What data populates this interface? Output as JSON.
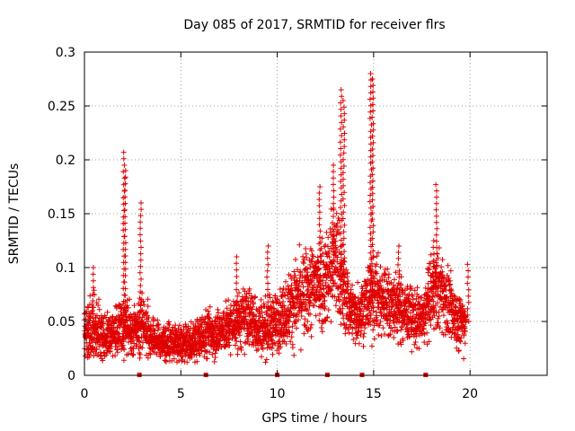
{
  "chart_data": {
    "type": "scatter",
    "title": "Day 085 of 2017, SRMTID for receiver flrs",
    "xlabel": "GPS time / hours",
    "ylabel": "SRMTID / TECUs",
    "xlim": [
      0,
      24
    ],
    "ylim": [
      0,
      0.3
    ],
    "x_ticks": [
      0,
      5,
      10,
      15,
      20
    ],
    "x_tick_labels": [
      "0",
      "5",
      "10",
      "15",
      "20"
    ],
    "y_ticks": [
      0,
      0.05,
      0.1,
      0.15,
      0.2,
      0.25,
      0.3
    ],
    "y_tick_labels": [
      "0",
      "0.05",
      "0.1",
      "0.15",
      "0.2",
      "0.25",
      "0.3"
    ],
    "grid": true,
    "marker": "+",
    "series_color": "#e00000",
    "data_gap_markers_x": [
      2.85,
      6.3,
      10.0,
      12.6,
      14.4,
      17.7
    ],
    "envelope": {
      "description_hours": [
        0.0,
        0.5,
        1.0,
        1.5,
        2.0,
        2.5,
        3.0,
        3.5,
        4.0,
        4.5,
        5.0,
        5.5,
        6.0,
        6.5,
        7.0,
        7.5,
        8.0,
        8.5,
        9.0,
        9.5,
        10.0,
        10.5,
        11.0,
        11.5,
        12.0,
        12.5,
        13.0,
        13.5,
        14.0,
        14.5,
        15.0,
        15.5,
        16.0,
        16.5,
        17.0,
        17.5,
        18.0,
        18.5,
        19.0,
        19.5,
        19.8
      ],
      "median": [
        0.04,
        0.045,
        0.035,
        0.04,
        0.045,
        0.04,
        0.05,
        0.035,
        0.03,
        0.03,
        0.028,
        0.03,
        0.035,
        0.04,
        0.04,
        0.045,
        0.05,
        0.055,
        0.045,
        0.045,
        0.05,
        0.06,
        0.07,
        0.075,
        0.085,
        0.09,
        0.11,
        0.075,
        0.055,
        0.065,
        0.075,
        0.07,
        0.065,
        0.06,
        0.055,
        0.05,
        0.075,
        0.08,
        0.06,
        0.05,
        0.05
      ],
      "spread": [
        0.018,
        0.02,
        0.015,
        0.015,
        0.02,
        0.015,
        0.02,
        0.012,
        0.012,
        0.012,
        0.012,
        0.012,
        0.014,
        0.016,
        0.015,
        0.016,
        0.018,
        0.02,
        0.018,
        0.018,
        0.018,
        0.022,
        0.025,
        0.028,
        0.03,
        0.032,
        0.04,
        0.025,
        0.018,
        0.022,
        0.025,
        0.025,
        0.022,
        0.02,
        0.018,
        0.018,
        0.025,
        0.025,
        0.02,
        0.018,
        0.018
      ]
    },
    "spikes": [
      {
        "x": 0.45,
        "peak": 0.1
      },
      {
        "x": 2.05,
        "peak": 0.207
      },
      {
        "x": 2.12,
        "peak": 0.19
      },
      {
        "x": 2.9,
        "peak": 0.16
      },
      {
        "x": 7.9,
        "peak": 0.11
      },
      {
        "x": 9.5,
        "peak": 0.12
      },
      {
        "x": 12.2,
        "peak": 0.175
      },
      {
        "x": 12.9,
        "peak": 0.195
      },
      {
        "x": 13.3,
        "peak": 0.265
      },
      {
        "x": 13.45,
        "peak": 0.255
      },
      {
        "x": 14.85,
        "peak": 0.28
      },
      {
        "x": 14.95,
        "peak": 0.275
      },
      {
        "x": 16.3,
        "peak": 0.12
      },
      {
        "x": 18.1,
        "peak": 0.125
      },
      {
        "x": 18.25,
        "peak": 0.177
      },
      {
        "x": 19.9,
        "peak": 0.103
      }
    ],
    "sample_step_hours": 0.012,
    "points_per_step": 2
  }
}
